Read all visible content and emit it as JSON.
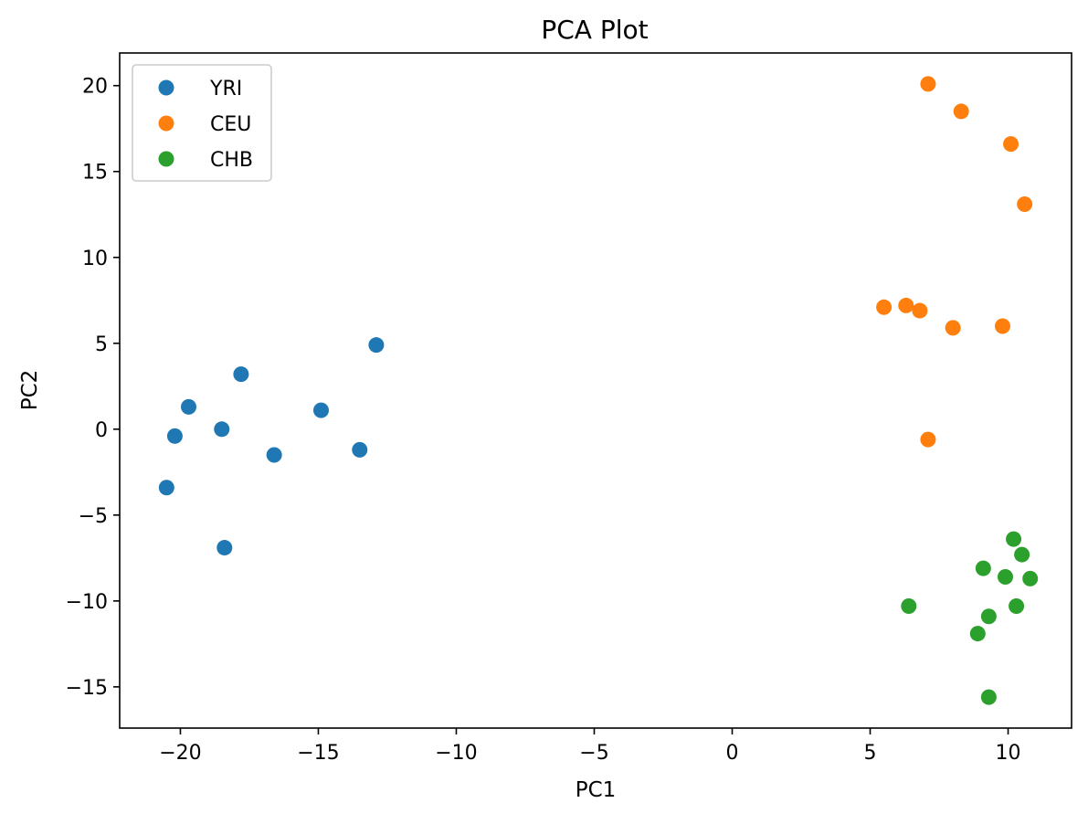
{
  "chart_data": {
    "type": "scatter",
    "title": "PCA Plot",
    "xlabel": "PC1",
    "ylabel": "PC2",
    "xlim": [
      -22.2,
      12.3
    ],
    "ylim": [
      -17.4,
      21.9
    ],
    "xticks": [
      -20,
      -15,
      -10,
      -5,
      0,
      5,
      10
    ],
    "xtick_labels": [
      "−20",
      "−15",
      "−10",
      "−5",
      "0",
      "5",
      "10"
    ],
    "yticks": [
      -15,
      -10,
      -5,
      0,
      5,
      10,
      15,
      20
    ],
    "ytick_labels": [
      "−15",
      "−10",
      "−5",
      "0",
      "5",
      "10",
      "15",
      "20"
    ],
    "grid": false,
    "legend_position": "top-left",
    "series": [
      {
        "name": "YRI",
        "color": "#1f77b4",
        "points": [
          [
            -12.9,
            4.9
          ],
          [
            -17.8,
            3.2
          ],
          [
            -19.7,
            1.3
          ],
          [
            -14.9,
            1.1
          ],
          [
            -18.5,
            0.0
          ],
          [
            -20.2,
            -0.4
          ],
          [
            -16.6,
            -1.5
          ],
          [
            -13.5,
            -1.2
          ],
          [
            -20.5,
            -3.4
          ],
          [
            -18.4,
            -6.9
          ]
        ]
      },
      {
        "name": "CEU",
        "color": "#ff7f0e",
        "points": [
          [
            7.1,
            20.1
          ],
          [
            8.3,
            18.5
          ],
          [
            10.1,
            16.6
          ],
          [
            10.6,
            13.1
          ],
          [
            5.5,
            7.1
          ],
          [
            6.3,
            7.2
          ],
          [
            6.8,
            6.9
          ],
          [
            8.0,
            5.9
          ],
          [
            9.8,
            6.0
          ],
          [
            7.1,
            -0.6
          ]
        ]
      },
      {
        "name": "CHB",
        "color": "#2ca02c",
        "points": [
          [
            10.2,
            -6.4
          ],
          [
            10.5,
            -7.3
          ],
          [
            9.1,
            -8.1
          ],
          [
            9.9,
            -8.6
          ],
          [
            10.8,
            -8.7
          ],
          [
            6.4,
            -10.3
          ],
          [
            10.3,
            -10.3
          ],
          [
            9.3,
            -10.9
          ],
          [
            8.9,
            -11.9
          ],
          [
            9.3,
            -15.6
          ]
        ]
      }
    ]
  }
}
